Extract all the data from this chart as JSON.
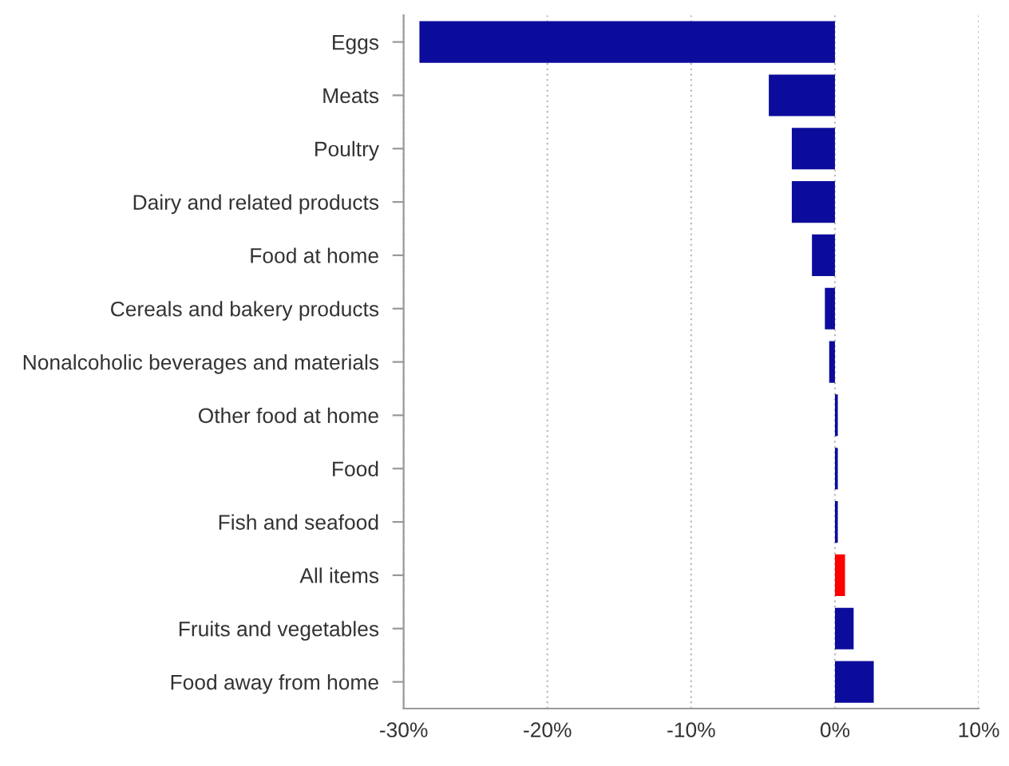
{
  "chart_data": {
    "type": "bar",
    "orientation": "horizontal",
    "categories": [
      "Eggs",
      "Meats",
      "Poultry",
      "Dairy and related products",
      "Food at home",
      "Cereals and bakery products",
      "Nonalcoholic beverages and materials",
      "Other food at home",
      "Food",
      "Fish and seafood",
      "All items",
      "Fruits and vegetables",
      "Food away from home"
    ],
    "values": [
      -28.9,
      -4.6,
      -3.0,
      -3.0,
      -1.6,
      -0.7,
      -0.4,
      0.2,
      0.2,
      0.2,
      0.7,
      1.3,
      2.7
    ],
    "colors": [
      "#0c0c9c",
      "#0c0c9c",
      "#0c0c9c",
      "#0c0c9c",
      "#0c0c9c",
      "#0c0c9c",
      "#0c0c9c",
      "#0c0c9c",
      "#0c0c9c",
      "#0c0c9c",
      "#ff0000",
      "#0c0c9c",
      "#0c0c9c"
    ],
    "xlim": [
      -30,
      10
    ],
    "xticks": [
      {
        "value": -30,
        "label": "-30%"
      },
      {
        "value": -20,
        "label": "-20%"
      },
      {
        "value": -10,
        "label": "-10%"
      },
      {
        "value": 0,
        "label": "0%"
      },
      {
        "value": 10,
        "label": "10%"
      }
    ],
    "grid": "x",
    "legend": false
  }
}
